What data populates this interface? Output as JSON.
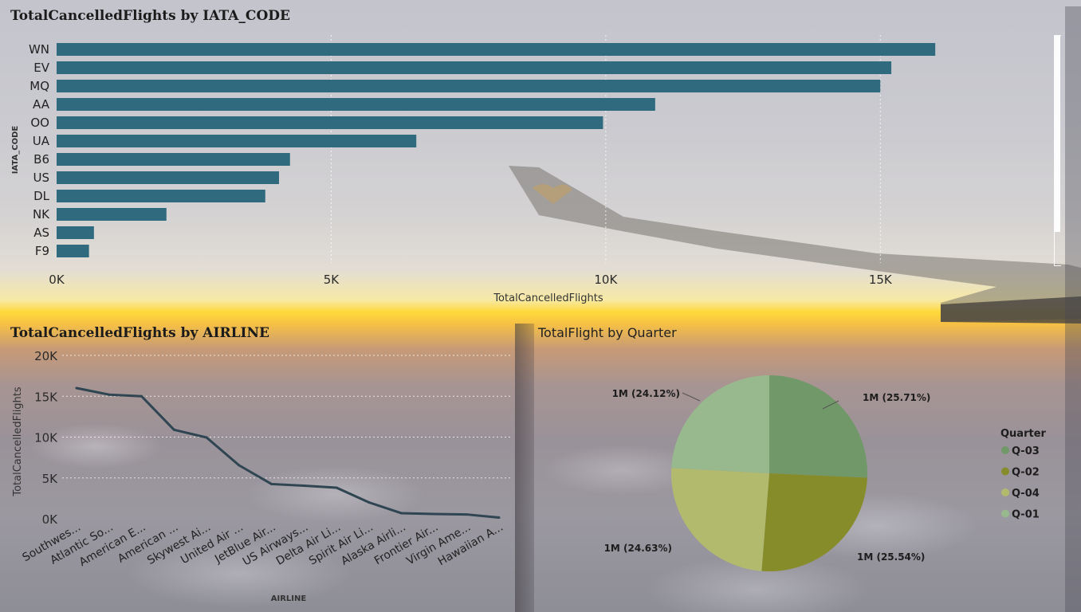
{
  "charts": {
    "bar": {
      "title": "TotalCancelledFlights by IATA_CODE"
    },
    "line": {
      "title": "TotalCancelledFlights by AIRLINE"
    },
    "pie": {
      "title": "TotalFlight by Quarter"
    }
  },
  "colors": {
    "bar": "#2f6a7e",
    "line": "#2f4552",
    "q03": "#709868",
    "q02": "#878c2a",
    "q04": "#b2ba6e",
    "q01": "#98b88e"
  },
  "chart_data": [
    {
      "type": "bar",
      "orientation": "horizontal",
      "title": "TotalCancelledFlights by IATA_CODE",
      "xlabel": "TotalCancelledFlights",
      "ylabel": "IATA_CODE",
      "categories": [
        "WN",
        "EV",
        "MQ",
        "AA",
        "OO",
        "UA",
        "B6",
        "US",
        "DL",
        "NK",
        "AS",
        "F9"
      ],
      "values": [
        16000,
        15200,
        15000,
        10900,
        9950,
        6550,
        4250,
        4050,
        3800,
        2000,
        680,
        590
      ],
      "xlim": [
        0,
        17500
      ],
      "xticks": [
        0,
        5000,
        10000,
        15000
      ],
      "xtick_labels": [
        "0K",
        "5K",
        "10K",
        "15K"
      ],
      "grid": true
    },
    {
      "type": "line",
      "title": "TotalCancelledFlights by AIRLINE",
      "xlabel": "AIRLINE",
      "ylabel": "TotalCancelledFlights",
      "categories": [
        "Southwes...",
        "Atlantic So...",
        "American E...",
        "American ...",
        "Skywest Ai...",
        "United Air ...",
        "JetBlue Air...",
        "US Airways...",
        "Delta Air Li...",
        "Spirit Air Li...",
        "Alaska Airli...",
        "Frontier Air...",
        "Virgin Ame...",
        "Hawaiian A..."
      ],
      "values": [
        16000,
        15200,
        15000,
        10900,
        9950,
        6550,
        4250,
        4050,
        3800,
        2000,
        680,
        590,
        530,
        150
      ],
      "ylim": [
        0,
        20000
      ],
      "yticks": [
        0,
        5000,
        10000,
        15000,
        20000
      ],
      "ytick_labels": [
        "0K",
        "5K",
        "10K",
        "15K",
        "20K"
      ],
      "grid": true
    },
    {
      "type": "pie",
      "title": "TotalFlight by Quarter",
      "legend_title": "Quarter",
      "legend_position": "right",
      "slices": [
        {
          "name": "Q-03",
          "percent": 25.71,
          "label": "1M (25.71%)"
        },
        {
          "name": "Q-02",
          "percent": 25.54,
          "label": "1M (25.54%)"
        },
        {
          "name": "Q-04",
          "percent": 24.63,
          "label": "1M (24.63%)"
        },
        {
          "name": "Q-01",
          "percent": 24.12,
          "label": "1M (24.12%)"
        }
      ]
    }
  ]
}
